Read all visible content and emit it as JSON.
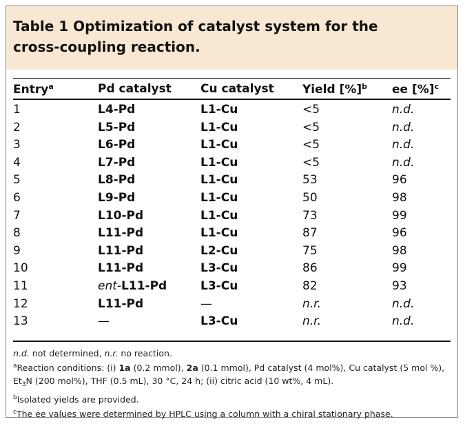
{
  "title": "Table 1 Optimization of catalyst system for the cross-coupling reaction.",
  "table": {
    "columns": [
      {
        "text": "Entry",
        "sup": "a",
        "style": "normal"
      },
      {
        "text": "Pd catalyst",
        "style": "bold"
      },
      {
        "text": "Cu catalyst",
        "style": "bold"
      },
      {
        "text": "Yield [%]",
        "sup": "b",
        "style": "normal"
      },
      {
        "text": "ee [%]",
        "sup": "c",
        "style": "normal"
      }
    ],
    "rows": [
      [
        "1",
        "L4-Pd",
        "L1-Cu",
        "<5",
        {
          "text": "n.d.",
          "style": "italic"
        }
      ],
      [
        "2",
        "L5-Pd",
        "L1-Cu",
        "<5",
        {
          "text": "n.d.",
          "style": "italic"
        }
      ],
      [
        "3",
        "L6-Pd",
        "L1-Cu",
        "<5",
        {
          "text": "n.d.",
          "style": "italic"
        }
      ],
      [
        "4",
        "L7-Pd",
        "L1-Cu",
        "<5",
        {
          "text": "n.d.",
          "style": "italic"
        }
      ],
      [
        "5",
        "L8-Pd",
        "L1-Cu",
        "53",
        "96"
      ],
      [
        "6",
        "L9-Pd",
        "L1-Cu",
        "50",
        "98"
      ],
      [
        "7",
        "L10-Pd",
        "L1-Cu",
        "73",
        "99"
      ],
      [
        "8",
        "L11-Pd",
        "L1-Cu",
        "87",
        "96"
      ],
      [
        "9",
        "L11-Pd",
        "L2-Cu",
        "75",
        "98"
      ],
      [
        "10",
        "L11-Pd",
        "L3-Cu",
        "86",
        "99"
      ],
      [
        "11",
        [
          {
            "text": "ent-",
            "style": "italic"
          },
          {
            "text": "L11-Pd",
            "style": "bold"
          }
        ],
        "L3-Cu",
        "82",
        "93"
      ],
      [
        "12",
        "L11-Pd",
        {
          "text": "—",
          "style": "normal"
        },
        {
          "text": "n.r.",
          "style": "italic"
        },
        {
          "text": "n.d.",
          "style": "italic"
        }
      ],
      [
        "13",
        {
          "text": "—",
          "style": "normal"
        },
        "L3-Cu",
        {
          "text": "n.r.",
          "style": "italic"
        },
        {
          "text": "n.d.",
          "style": "italic"
        }
      ]
    ]
  },
  "footnotes": [
    [
      {
        "text": "n.d.",
        "style": "italic"
      },
      {
        "text": " not determined, "
      },
      {
        "text": "n.r.",
        "style": "italic"
      },
      {
        "text": " no reaction."
      }
    ],
    [
      {
        "text": "a",
        "style": "sup"
      },
      {
        "text": "Reaction conditions: (i) "
      },
      {
        "text": "1a",
        "style": "bold"
      },
      {
        "text": " (0.2 mmol), "
      },
      {
        "text": "2a",
        "style": "bold"
      },
      {
        "text": " (0.1 mmol), Pd catalyst (4 mol%), Cu catalyst (5 mol %), Et"
      },
      {
        "text": "3",
        "style": "sub"
      },
      {
        "text": "N (200 mol%), THF (0.5 mL), 30 °C, 24 h; (ii) citric acid (10 wt%, 4 mL)."
      }
    ],
    [
      {
        "text": "b",
        "style": "sup"
      },
      {
        "text": "Isolated yields are provided."
      }
    ],
    [
      {
        "text": "c",
        "style": "sup"
      },
      {
        "text": "The ee values were determined by HPLC using a column with a chiral stationary phase."
      }
    ]
  ]
}
